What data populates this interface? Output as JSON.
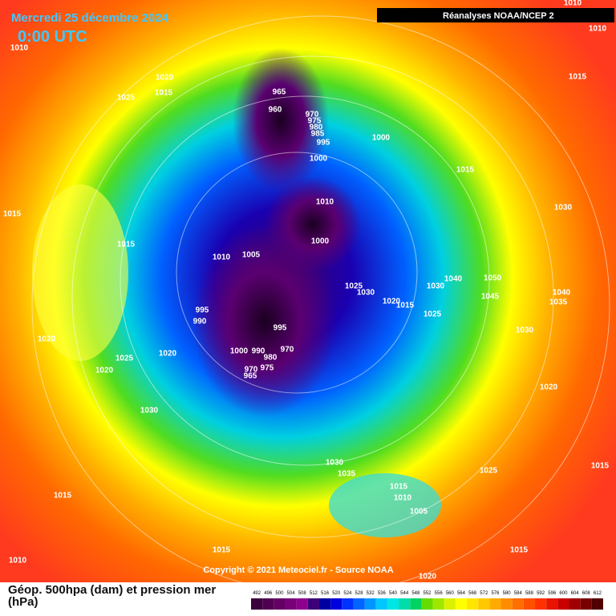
{
  "header": {
    "date": "Mercredi 25 décembre 2024",
    "time": "0:00 UTC",
    "source": "Réanalyses NOAA/NCEP 2"
  },
  "copyright": "Copyright © 2021 Meteociel.fr - Source NOAA",
  "legend": {
    "title": "Géop. 500hpa (dam) et pression mer (hPa)",
    "values": [
      492,
      496,
      500,
      504,
      508,
      512,
      516,
      520,
      524,
      528,
      532,
      536,
      540,
      544,
      548,
      552,
      556,
      560,
      564,
      568,
      572,
      576,
      580,
      584,
      588,
      592,
      596,
      600,
      604,
      608,
      612
    ],
    "colors": [
      "#3c003c",
      "#500050",
      "#640064",
      "#780078",
      "#8c008c",
      "#3c0078",
      "#0000a0",
      "#0000dc",
      "#0032ff",
      "#0064ff",
      "#0096ff",
      "#00c8ff",
      "#00e6e6",
      "#00dcaa",
      "#00d264",
      "#64dc00",
      "#a0e600",
      "#dcf000",
      "#ffff00",
      "#ffe600",
      "#ffc800",
      "#ffaa00",
      "#ff8c00",
      "#ff6e00",
      "#ff5000",
      "#ff3200",
      "#e61400",
      "#c80000",
      "#a00000",
      "#780000",
      "#500000"
    ]
  },
  "isobar_labels": [
    1010,
    1010,
    1010,
    1020,
    1015,
    1025,
    1015,
    965,
    960,
    970,
    975,
    980,
    985,
    995,
    1000,
    1000,
    1015,
    1010,
    1030,
    1015,
    1015,
    1000,
    1010,
    1005,
    1025,
    1030,
    1030,
    1040,
    1050,
    1020,
    1015,
    1045,
    1040,
    1035,
    995,
    990,
    1025,
    995,
    1030,
    1020,
    970,
    1000,
    990,
    980,
    1020,
    1025,
    975,
    970,
    965,
    1020,
    1020,
    1030,
    1030,
    1035,
    1025,
    1015,
    1015,
    1010,
    1005,
    1015,
    1015,
    1015,
    1010,
    1020
  ]
}
